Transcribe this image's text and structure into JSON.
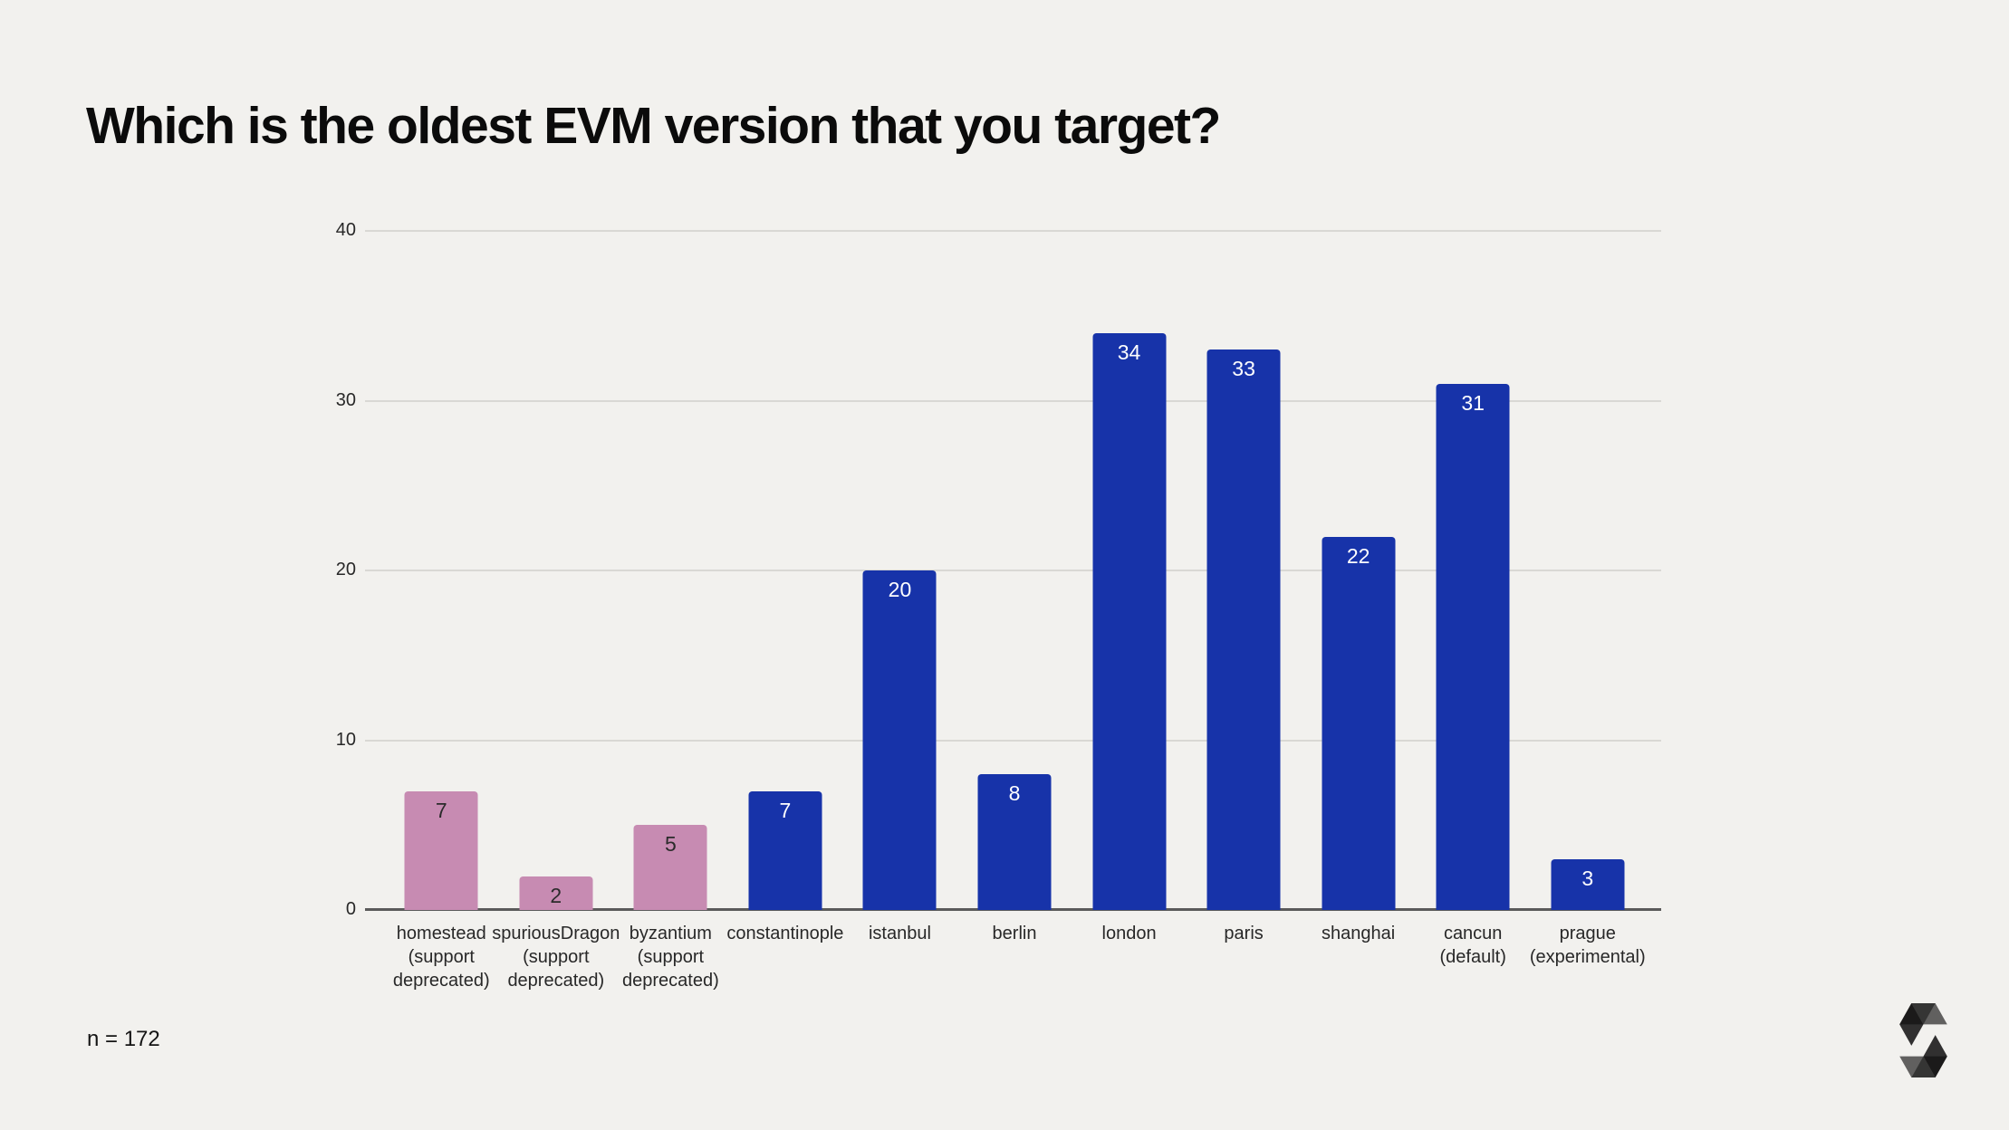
{
  "header": {
    "title": "Which is the oldest EVM version that you target?"
  },
  "footer": {
    "sample_size": "n = 172"
  },
  "branding": {
    "logo_icon": "solidity-logo"
  },
  "chart_data": {
    "type": "bar",
    "title": "Which is the oldest EVM version that you target?",
    "xlabel": "",
    "ylabel": "",
    "ylim": [
      0,
      40
    ],
    "y_ticks": [
      0,
      10,
      20,
      30,
      40
    ],
    "grid": "horizontal",
    "legend": "none",
    "categories": [
      "homestead\n(support\ndeprecated)",
      "spuriousDragon\n(support\ndeprecated)",
      "byzantium\n(support\ndeprecated)",
      "constantinople",
      "istanbul",
      "berlin",
      "london",
      "paris",
      "shanghai",
      "cancun\n(default)",
      "prague\n(experimental)"
    ],
    "values": [
      7,
      2,
      5,
      7,
      20,
      8,
      34,
      33,
      22,
      31,
      3
    ],
    "statuses": [
      "deprecated",
      "deprecated",
      "deprecated",
      "supported",
      "supported",
      "supported",
      "supported",
      "supported",
      "supported",
      "supported",
      "supported"
    ],
    "colors": {
      "deprecated": "#c78bb2",
      "supported": "#1733a9",
      "value_label_on_deprecated": "#2b2b2b",
      "value_label_on_supported": "#ffffff",
      "gridline": "#d9d8d4",
      "axis_line": "#5a5a5a"
    }
  }
}
